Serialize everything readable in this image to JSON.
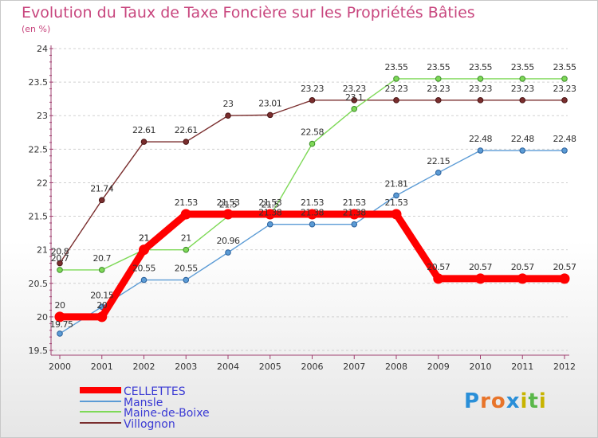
{
  "chart_data": {
    "type": "line",
    "title": "Evolution du Taux de Taxe Foncière sur les Propriétés Bâties",
    "unit": "(en %)",
    "xlabel": "",
    "ylabel": "",
    "ylim": [
      19.5,
      24
    ],
    "y_ticks": [
      "19.5",
      "20",
      "20.5",
      "21",
      "21.5",
      "22",
      "22.5",
      "23",
      "23.5",
      "24"
    ],
    "categories": [
      "2000",
      "2001",
      "2002",
      "2003",
      "2004",
      "2005",
      "2006",
      "2007",
      "2008",
      "2009",
      "2010",
      "2011",
      "2012"
    ],
    "series": [
      {
        "name": "CELLETTES",
        "color": "#ff0000",
        "values": [
          20,
          20,
          21,
          21.53,
          21.53,
          21.53,
          21.53,
          21.53,
          21.53,
          20.57,
          20.57,
          20.57,
          20.57
        ],
        "labels": [
          "20",
          "20",
          "21",
          "21.53",
          "21.53",
          "21.53",
          "21.53",
          "21.53",
          "21.53",
          "20.57",
          "20.57",
          "20.57",
          "20.57"
        ]
      },
      {
        "name": "Mansle",
        "color": "#5b9bd5",
        "values": [
          19.75,
          20.15,
          20.55,
          20.55,
          20.96,
          21.38,
          21.38,
          21.38,
          21.81,
          22.15,
          22.48,
          22.48,
          22.48
        ],
        "labels": [
          "19.75",
          "20.15",
          "20.55",
          "20.55",
          "20.96",
          "21.38",
          "21.38",
          "21.38",
          "21.81",
          "22.15",
          "22.48",
          "22.48",
          "22.48"
        ]
      },
      {
        "name": "Maine-de-Boixe",
        "color": "#7ed957",
        "values": [
          20.7,
          20.7,
          21,
          21,
          21.5,
          21.5,
          22.58,
          23.1,
          23.55,
          23.55,
          23.55,
          23.55,
          23.55
        ],
        "labels": [
          "20.7",
          "20.7",
          "21",
          "21",
          "21.5",
          "21.5",
          "22.58",
          "23.1",
          "23.55",
          "23.55",
          "23.55",
          "23.55",
          "23.55"
        ]
      },
      {
        "name": "Villognon",
        "color": "#7a2e2e",
        "values": [
          20.8,
          21.74,
          22.61,
          22.61,
          23,
          23.01,
          23.23,
          23.23,
          23.23,
          23.23,
          23.23,
          23.23,
          23.23
        ],
        "labels": [
          "20.8",
          "21.74",
          "22.61",
          "22.61",
          "23",
          "23.01",
          "23.23",
          "23.23",
          "23.23",
          "23.23",
          "23.23",
          "23.23",
          "23.23"
        ]
      }
    ],
    "legend_position": "bottom-left"
  },
  "brand": {
    "letters": [
      "P",
      "r",
      "o",
      "x",
      "i",
      "t",
      "i"
    ],
    "colors": [
      "#2a8fd8",
      "#e8742a",
      "#e8742a",
      "#2a8fd8",
      "#c8b400",
      "#5ab84a",
      "#c8b400"
    ]
  }
}
